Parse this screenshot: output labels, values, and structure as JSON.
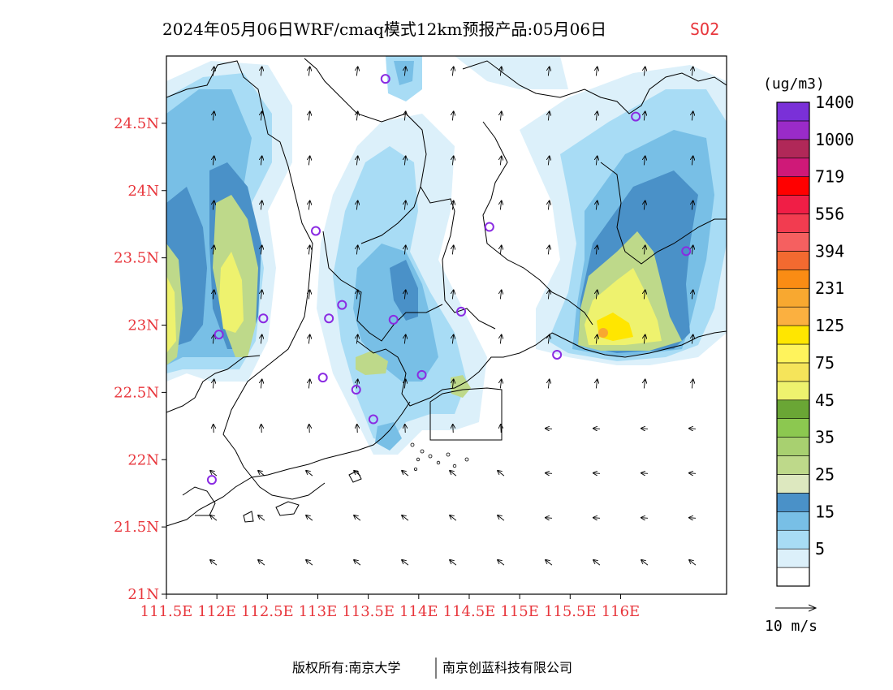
{
  "title": {
    "main": "2024年05月06日WRF/cmaq模式12km预报产品:05月06日",
    "species": "SO2"
  },
  "map": {
    "lon_range": [
      111.5,
      117.05
    ],
    "lat_range": [
      21.0,
      25.0
    ],
    "lon_ticks": [
      {
        "value": 111.5,
        "label": "111.5E"
      },
      {
        "value": 112.0,
        "label": "112E"
      },
      {
        "value": 112.5,
        "label": "112.5E"
      },
      {
        "value": 113.0,
        "label": "113E"
      },
      {
        "value": 113.5,
        "label": "113.5E"
      },
      {
        "value": 114.0,
        "label": "114E"
      },
      {
        "value": 114.5,
        "label": "114.5E"
      },
      {
        "value": 115.0,
        "label": "115E"
      },
      {
        "value": 115.5,
        "label": "115.5E"
      },
      {
        "value": 116.0,
        "label": "116E"
      }
    ],
    "lat_ticks": [
      {
        "value": 21.0,
        "label": "21N"
      },
      {
        "value": 21.5,
        "label": "21.5N"
      },
      {
        "value": 22.0,
        "label": "22N"
      },
      {
        "value": 22.5,
        "label": "22.5N"
      },
      {
        "value": 23.0,
        "label": "23N"
      },
      {
        "value": 23.5,
        "label": "23.5N"
      },
      {
        "value": 24.0,
        "label": "24N"
      },
      {
        "value": 24.5,
        "label": "24.5N"
      }
    ],
    "stations": [
      {
        "lon": 113.67,
        "lat": 24.83
      },
      {
        "lon": 116.15,
        "lat": 24.55
      },
      {
        "lon": 112.98,
        "lat": 23.7
      },
      {
        "lon": 114.7,
        "lat": 23.73
      },
      {
        "lon": 116.65,
        "lat": 23.55
      },
      {
        "lon": 113.24,
        "lat": 23.15
      },
      {
        "lon": 112.46,
        "lat": 23.05
      },
      {
        "lon": 113.11,
        "lat": 23.05
      },
      {
        "lon": 113.75,
        "lat": 23.04
      },
      {
        "lon": 114.42,
        "lat": 23.1
      },
      {
        "lon": 112.02,
        "lat": 22.93
      },
      {
        "lon": 115.37,
        "lat": 22.78
      },
      {
        "lon": 113.05,
        "lat": 22.61
      },
      {
        "lon": 114.03,
        "lat": 22.63
      },
      {
        "lon": 113.38,
        "lat": 22.52
      },
      {
        "lon": 113.55,
        "lat": 22.3
      },
      {
        "lon": 111.95,
        "lat": 21.85
      }
    ]
  },
  "legend": {
    "unit": "(ug/m3)",
    "bins": [
      {
        "color": "#ffffff"
      },
      {
        "color": "#dcf0fa",
        "label": "5"
      },
      {
        "color": "#a8dcf5"
      },
      {
        "color": "#78bfe6",
        "label": "15"
      },
      {
        "color": "#4a91c8"
      },
      {
        "color": "#dde8bf",
        "label": "25"
      },
      {
        "color": "#bed98a"
      },
      {
        "color": "#a8d070",
        "label": "35"
      },
      {
        "color": "#8cc850"
      },
      {
        "color": "#6aa635",
        "label": "45"
      },
      {
        "color": "#eef26e"
      },
      {
        "color": "#f5e45a",
        "label": "75"
      },
      {
        "color": "#fff35c"
      },
      {
        "color": "#ffe600",
        "label": "125"
      },
      {
        "color": "#fbb040"
      },
      {
        "color": "#f8a830",
        "label": "231"
      },
      {
        "color": "#fa8c14"
      },
      {
        "color": "#f26a30",
        "label": "394"
      },
      {
        "color": "#f56060"
      },
      {
        "color": "#f23c50",
        "label": "556"
      },
      {
        "color": "#f01e46"
      },
      {
        "color": "#ff0000",
        "label": "719"
      },
      {
        "color": "#cf1978"
      },
      {
        "color": "#b02858",
        "label": "1000"
      },
      {
        "color": "#9a2bc8"
      },
      {
        "color": "#7a30d8",
        "label": "1400"
      }
    ]
  },
  "wind": {
    "reference_label": "10 m/s"
  },
  "footer": {
    "left": "版权所有:南京大学",
    "right": "南京创蓝科技有限公司"
  },
  "colors": {
    "station_marker": "#8a2be2",
    "tick_label": "#e8363c",
    "boundary": "#000000"
  }
}
